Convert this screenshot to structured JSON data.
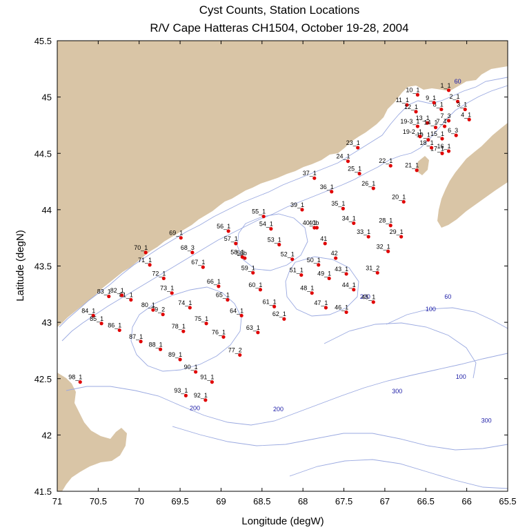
{
  "chart_data": {
    "type": "map",
    "title": "Cyst Counts, Station Locations",
    "subtitle": "R/V Cape Hatteras CH1504, October 19-28, 2004",
    "xlabel": "Longitude (degW)",
    "ylabel": "Latitude (degN)",
    "xlim": [
      71,
      65.5
    ],
    "ylim": [
      41.5,
      45.5
    ],
    "x_ticks": [
      "71",
      "70.5",
      "70",
      "69.5",
      "69",
      "68.5",
      "68",
      "67.5",
      "67",
      "66.5",
      "66",
      "65.5"
    ],
    "y_ticks": [
      "45.5",
      "45",
      "44.5",
      "44",
      "43.5",
      "43",
      "42.5",
      "42",
      "41.5"
    ],
    "station_color": "#e00000",
    "land_color": "#d9c5a6",
    "contour_color": "#99a8e0",
    "stations": [
      {
        "label": "1_1",
        "lon": 66.22,
        "lat": 45.06
      },
      {
        "label": "2_1",
        "lon": 66.11,
        "lat": 44.96
      },
      {
        "label": "3_1",
        "lon": 66.02,
        "lat": 44.89
      },
      {
        "label": "4_1",
        "lon": 65.97,
        "lat": 44.8
      },
      {
        "label": "6_3",
        "lon": 66.13,
        "lat": 44.66
      },
      {
        "label": "7_3",
        "lon": 66.22,
        "lat": 44.79
      },
      {
        "label": "7_4",
        "lon": 66.27,
        "lat": 44.74
      },
      {
        "label": "8_1",
        "lon": 66.31,
        "lat": 44.89
      },
      {
        "label": "9_1",
        "lon": 66.4,
        "lat": 44.95
      },
      {
        "label": "10_1",
        "lon": 66.6,
        "lat": 45.02
      },
      {
        "label": "11_1",
        "lon": 66.73,
        "lat": 44.93
      },
      {
        "label": "12_1",
        "lon": 66.62,
        "lat": 44.87
      },
      {
        "label": "13_1",
        "lon": 66.48,
        "lat": 44.77
      },
      {
        "label": "14_1",
        "lon": 66.38,
        "lat": 44.73
      },
      {
        "label": "15_1",
        "lon": 66.3,
        "lat": 44.63
      },
      {
        "label": "16_1",
        "lon": 66.22,
        "lat": 44.52
      },
      {
        "label": "17_1",
        "lon": 66.3,
        "lat": 44.5
      },
      {
        "label": "18_1",
        "lon": 66.43,
        "lat": 44.55
      },
      {
        "label": "19_1",
        "lon": 66.47,
        "lat": 44.62
      },
      {
        "label": "19-2_1",
        "lon": 66.57,
        "lat": 44.65
      },
      {
        "label": "19-3_1",
        "lon": 66.6,
        "lat": 44.74
      },
      {
        "label": "20_1",
        "lon": 66.77,
        "lat": 44.07
      },
      {
        "label": "21_1",
        "lon": 66.61,
        "lat": 44.35
      },
      {
        "label": "22_1",
        "lon": 66.93,
        "lat": 44.39
      },
      {
        "label": "23_1",
        "lon": 67.33,
        "lat": 44.55
      },
      {
        "label": "24_1",
        "lon": 67.45,
        "lat": 44.43
      },
      {
        "label": "25_1",
        "lon": 67.31,
        "lat": 44.32
      },
      {
        "label": "26_1",
        "lon": 67.14,
        "lat": 44.19
      },
      {
        "label": "28_1",
        "lon": 66.93,
        "lat": 43.86
      },
      {
        "label": "29_1",
        "lon": 66.8,
        "lat": 43.76
      },
      {
        "label": "31_2",
        "lon": 67.09,
        "lat": 43.44
      },
      {
        "label": "32_1",
        "lon": 66.96,
        "lat": 43.63
      },
      {
        "label": "33_1",
        "lon": 67.2,
        "lat": 43.76
      },
      {
        "label": "34_1",
        "lon": 67.38,
        "lat": 43.88
      },
      {
        "label": "35_1",
        "lon": 67.51,
        "lat": 44.01
      },
      {
        "label": "36_1",
        "lon": 67.65,
        "lat": 44.16
      },
      {
        "label": "37_1",
        "lon": 67.86,
        "lat": 44.28
      },
      {
        "label": "39_1",
        "lon": 68.01,
        "lat": 44.0
      },
      {
        "label": "40_1",
        "lon": 67.86,
        "lat": 43.84
      },
      {
        "label": "40b",
        "lon": 67.83,
        "lat": 43.84
      },
      {
        "label": "41",
        "lon": 67.73,
        "lat": 43.7
      },
      {
        "label": "42",
        "lon": 67.6,
        "lat": 43.57
      },
      {
        "label": "43_1",
        "lon": 67.47,
        "lat": 43.43
      },
      {
        "label": "44_1",
        "lon": 67.38,
        "lat": 43.29
      },
      {
        "label": "45_1",
        "lon": 67.14,
        "lat": 43.18
      },
      {
        "label": "46_1",
        "lon": 67.47,
        "lat": 43.09
      },
      {
        "label": "47_1",
        "lon": 67.72,
        "lat": 43.13
      },
      {
        "label": "48_1",
        "lon": 67.89,
        "lat": 43.26
      },
      {
        "label": "49_1",
        "lon": 67.68,
        "lat": 43.39
      },
      {
        "label": "50_1",
        "lon": 67.81,
        "lat": 43.51
      },
      {
        "label": "51_1",
        "lon": 68.02,
        "lat": 43.42
      },
      {
        "label": "52_1",
        "lon": 68.13,
        "lat": 43.56
      },
      {
        "label": "53_1",
        "lon": 68.29,
        "lat": 43.69
      },
      {
        "label": "54_1",
        "lon": 68.39,
        "lat": 43.83
      },
      {
        "label": "55_1",
        "lon": 68.48,
        "lat": 43.94
      },
      {
        "label": "56_1",
        "lon": 68.91,
        "lat": 43.81
      },
      {
        "label": "57_1",
        "lon": 68.82,
        "lat": 43.7
      },
      {
        "label": "58_1",
        "lon": 68.74,
        "lat": 43.58
      },
      {
        "label": "58b",
        "lon": 68.71,
        "lat": 43.57
      },
      {
        "label": "59_1",
        "lon": 68.61,
        "lat": 43.44
      },
      {
        "label": "60_1",
        "lon": 68.52,
        "lat": 43.29
      },
      {
        "label": "61_1",
        "lon": 68.35,
        "lat": 43.14
      },
      {
        "label": "62_1",
        "lon": 68.23,
        "lat": 43.03
      },
      {
        "label": "63_1",
        "lon": 68.55,
        "lat": 42.91
      },
      {
        "label": "64_1",
        "lon": 68.75,
        "lat": 43.06
      },
      {
        "label": "65_1",
        "lon": 68.92,
        "lat": 43.2
      },
      {
        "label": "66_1",
        "lon": 69.03,
        "lat": 43.32
      },
      {
        "label": "67_1",
        "lon": 69.22,
        "lat": 43.49
      },
      {
        "label": "68_3",
        "lon": 69.35,
        "lat": 43.62
      },
      {
        "label": "69_1",
        "lon": 69.49,
        "lat": 43.75
      },
      {
        "label": "70_1",
        "lon": 69.92,
        "lat": 43.62
      },
      {
        "label": "71_1",
        "lon": 69.87,
        "lat": 43.51
      },
      {
        "label": "72_1",
        "lon": 69.7,
        "lat": 43.39
      },
      {
        "label": "73_1",
        "lon": 69.6,
        "lat": 43.26
      },
      {
        "label": "74_1",
        "lon": 69.38,
        "lat": 43.13
      },
      {
        "label": "75_1",
        "lon": 69.18,
        "lat": 42.99
      },
      {
        "label": "76_1",
        "lon": 68.97,
        "lat": 42.87
      },
      {
        "label": "77_2",
        "lon": 68.77,
        "lat": 42.71
      },
      {
        "label": "78_1",
        "lon": 69.46,
        "lat": 42.92
      },
      {
        "label": "79_2",
        "lon": 69.71,
        "lat": 43.07
      },
      {
        "label": "80_1",
        "lon": 69.83,
        "lat": 43.11
      },
      {
        "label": "81_1",
        "lon": 70.1,
        "lat": 43.2
      },
      {
        "label": "82_1",
        "lon": 70.21,
        "lat": 43.24
      },
      {
        "label": "83_1",
        "lon": 70.37,
        "lat": 43.23
      },
      {
        "label": "84_1",
        "lon": 70.56,
        "lat": 43.06
      },
      {
        "label": "85_1",
        "lon": 70.46,
        "lat": 42.99
      },
      {
        "label": "86_1",
        "lon": 70.24,
        "lat": 42.93
      },
      {
        "label": "87_1",
        "lon": 69.98,
        "lat": 42.83
      },
      {
        "label": "88_1",
        "lon": 69.74,
        "lat": 42.76
      },
      {
        "label": "89_1",
        "lon": 69.5,
        "lat": 42.67
      },
      {
        "label": "90_1",
        "lon": 69.31,
        "lat": 42.56
      },
      {
        "label": "91_1",
        "lon": 69.11,
        "lat": 42.47
      },
      {
        "label": "92_1",
        "lon": 69.19,
        "lat": 42.31
      },
      {
        "label": "93_1",
        "lon": 69.43,
        "lat": 42.35
      },
      {
        "label": "98_1",
        "lon": 70.72,
        "lat": 42.47
      }
    ],
    "depth_labels": [
      {
        "text": "60",
        "lon": 66.11,
        "lat": 45.12
      },
      {
        "text": "60",
        "lon": 66.23,
        "lat": 43.21
      },
      {
        "text": "100",
        "lon": 66.44,
        "lat": 43.1
      },
      {
        "text": "200",
        "lon": 67.24,
        "lat": 43.21
      },
      {
        "text": "100",
        "lon": 66.07,
        "lat": 42.5
      },
      {
        "text": "300",
        "lon": 66.85,
        "lat": 42.37
      },
      {
        "text": "300",
        "lon": 65.76,
        "lat": 42.11
      },
      {
        "text": "200",
        "lon": 68.3,
        "lat": 42.21
      },
      {
        "text": "200",
        "lon": 69.32,
        "lat": 42.22
      }
    ]
  }
}
